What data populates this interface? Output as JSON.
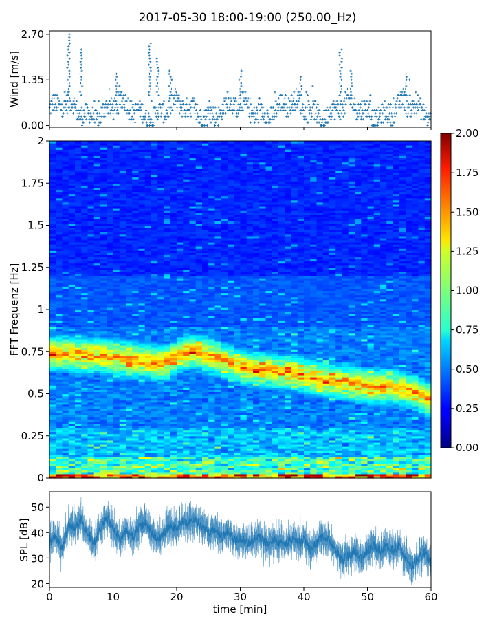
{
  "title": "2017-05-30 18:00-19:00 (250.00_Hz)",
  "chart_data": [
    {
      "name": "wind",
      "type": "scatter",
      "ylabel": "Wind [m/s]",
      "xlim": [
        0,
        60
      ],
      "ylim": [
        -0.05,
        2.8
      ],
      "yticks": [
        0.0,
        1.35,
        2.7
      ],
      "ytick_labels": [
        "0.00",
        "1.35",
        "2.70"
      ],
      "marker": "+",
      "color": "#1f77b4",
      "levels": [
        0.0,
        0.09,
        0.18,
        0.27,
        0.36,
        0.45,
        0.54,
        0.63,
        0.72,
        0.81,
        0.9,
        0.99,
        1.08,
        1.17,
        1.26,
        1.35
      ],
      "gust_peaks": [
        {
          "x": 3.0,
          "y": 2.7
        },
        {
          "x": 5.0,
          "y": 2.25
        },
        {
          "x": 15.8,
          "y": 2.5
        },
        {
          "x": 17.0,
          "y": 2.0
        },
        {
          "x": 19.0,
          "y": 1.65
        },
        {
          "x": 45.8,
          "y": 2.3
        },
        {
          "x": 47.5,
          "y": 1.7
        },
        {
          "x": 30.0,
          "y": 1.65
        },
        {
          "x": 56.0,
          "y": 1.6
        },
        {
          "x": 10.5,
          "y": 1.6
        },
        {
          "x": 39.5,
          "y": 1.5
        }
      ]
    },
    {
      "name": "spectrogram",
      "type": "heatmap",
      "ylabel": "FFT Frequenz [Hz]",
      "xlim": [
        0,
        60
      ],
      "ylim": [
        0,
        2
      ],
      "yticks": [
        0,
        0.25,
        0.5,
        0.75,
        1,
        1.25,
        1.5,
        1.75,
        2
      ],
      "ytick_labels": [
        "0",
        "0.25",
        "0.5",
        "0.75",
        "1",
        "1.25",
        "1.5",
        "1.75",
        "2"
      ],
      "colormap": "jet",
      "vmin": 0.0,
      "vmax": 2.0,
      "colorbar_ticks": [
        "0.00",
        "0.25",
        "0.50",
        "0.75",
        "1.00",
        "1.25",
        "1.50",
        "1.75",
        "2.00"
      ],
      "dominant_band": {
        "t": [
          2,
          6,
          10,
          14,
          18,
          22,
          26,
          30,
          34,
          38,
          42,
          46,
          50,
          54,
          57,
          60
        ],
        "f": [
          0.74,
          0.73,
          0.72,
          0.7,
          0.68,
          0.76,
          0.72,
          0.66,
          0.64,
          0.63,
          0.59,
          0.57,
          0.55,
          0.54,
          0.52,
          0.46
        ]
      }
    },
    {
      "name": "spl",
      "type": "line",
      "ylabel": "SPL [dB]",
      "xlabel": "time [min]",
      "xlim": [
        0,
        60
      ],
      "ylim": [
        18.5,
        56
      ],
      "yticks": [
        20,
        30,
        40,
        50
      ],
      "xticks": [
        0,
        10,
        20,
        30,
        40,
        50,
        60
      ],
      "color": "#1f77b4",
      "x": [
        0,
        1,
        2,
        3,
        4,
        5,
        6,
        7,
        8,
        9,
        10,
        11,
        12,
        13,
        14,
        15,
        16,
        17,
        18,
        19,
        20,
        21,
        22,
        23,
        24,
        25,
        26,
        27,
        28,
        29,
        30,
        31,
        32,
        33,
        34,
        35,
        36,
        37,
        38,
        39,
        40,
        41,
        42,
        43,
        44,
        45,
        46,
        47,
        48,
        49,
        50,
        51,
        52,
        53,
        54,
        55,
        56,
        57,
        58,
        59,
        60
      ],
      "y": [
        36,
        38,
        33,
        43,
        42,
        45,
        40,
        36,
        41,
        46,
        42,
        37,
        40,
        38,
        42,
        44,
        40,
        37,
        40,
        43,
        41,
        45,
        44,
        45,
        42,
        40,
        41,
        38,
        40,
        37,
        38,
        36,
        37,
        38,
        36,
        37,
        36,
        35,
        38,
        36,
        37,
        33,
        36,
        39,
        37,
        33,
        29,
        31,
        33,
        30,
        33,
        35,
        33,
        34,
        33,
        35,
        30,
        27,
        30,
        32,
        28
      ]
    }
  ]
}
